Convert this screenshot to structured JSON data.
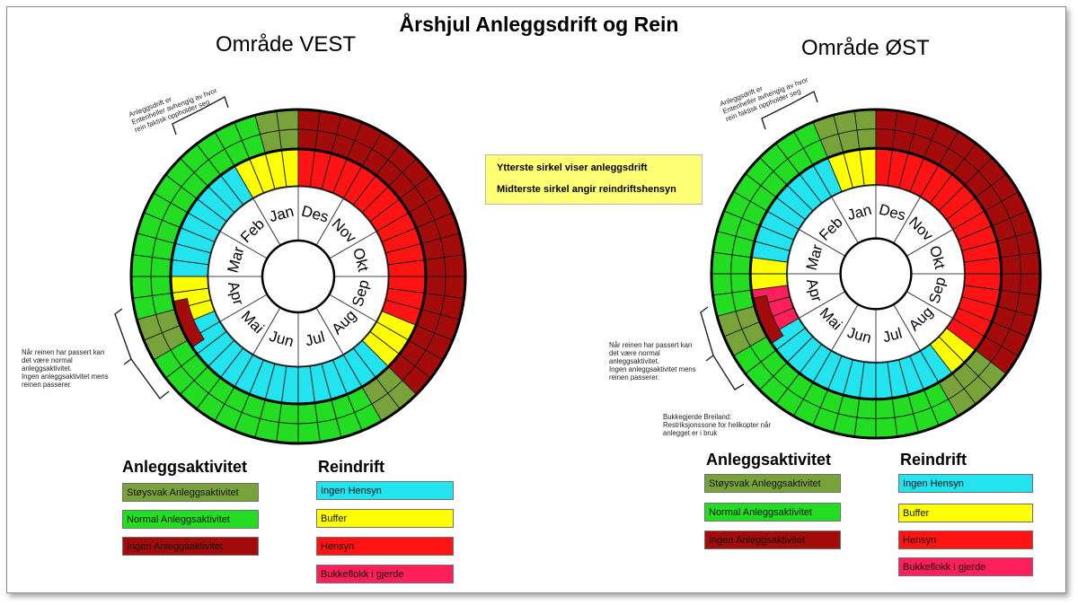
{
  "title": "Årshjul Anleggsdrift og Rein",
  "note": {
    "line1": "Ytterste sirkel viser anleggsdrift",
    "line2": "Midterste sirkel angir reindriftshensyn"
  },
  "colors": {
    "stoysvak": "#77a33a",
    "normal": "#22dd22",
    "ingen": "#a40b0b",
    "ingen_hensyn": "#22e3ee",
    "buffer": "#ffff00",
    "hensyn": "#ff1313",
    "bukkeflokk": "#ff1f5a",
    "note_bg": "#ffff73"
  },
  "months": [
    "Jan",
    "Feb",
    "Mar",
    "Apr",
    "Mai",
    "Jun",
    "Jul",
    "Aug",
    "Sep",
    "Okt",
    "Nov",
    "Des"
  ],
  "vest": {
    "heading": "Område VEST",
    "annotation_top": "Anleggsdrift er\nEntenheller avhengig av hvor\nrein faktisk oppholder seg",
    "annotation_left": "Når reinen har passert kan\ndet være normal\nanleggsaktivitet.\nIngen anleggsaktivitet mens\nreinen passerer.",
    "outer_ring": [
      "S",
      "S",
      "N",
      "N",
      "N",
      "N",
      "N",
      "N",
      "N",
      "N",
      "N",
      "N",
      "N",
      "N",
      "S",
      "S",
      "N",
      "N",
      "N",
      "N",
      "N",
      "N",
      "N",
      "N",
      "N",
      "N",
      "N",
      "N",
      "S",
      "S",
      "I",
      "I",
      "I",
      "I",
      "I",
      "I",
      "I",
      "I",
      "I",
      "I",
      "I",
      "I",
      "I",
      "I",
      "I",
      "I",
      "I",
      "I"
    ],
    "middle_ring": [
      "B",
      "B",
      "B",
      "B",
      "IH",
      "IH",
      "IH",
      "IH",
      "IH",
      "IH",
      "IH",
      "IH",
      "B",
      "B",
      "B",
      "IH",
      "IH",
      "IH",
      "IH",
      "IH",
      "IH",
      "IH",
      "IH",
      "IH",
      "IH",
      "IH",
      "IH",
      "IH",
      "IH",
      "IH",
      "B",
      "B",
      "B",
      "H",
      "H",
      "H",
      "H",
      "H",
      "H",
      "H",
      "H",
      "H",
      "H",
      "H",
      "H",
      "H",
      "H",
      "H"
    ],
    "middle_overlay": [
      {
        "s": 13.5,
        "e": 16.5,
        "c": "I"
      }
    ],
    "legend": {
      "anlegg_heading": "Anleggsaktivitet",
      "anlegg": [
        "Støysvak Anleggsaktivitet",
        "Normal Anleggsaktivitet",
        "Ingen Anleggsaktivitet"
      ],
      "rein_heading": "Reindrift",
      "rein": [
        "Ingen Hensyn",
        "Buffer",
        "Hensyn",
        "Bukkeflokk i gjerde"
      ]
    }
  },
  "ost": {
    "heading": "Område ØST",
    "annotation_top": "Anleggsdrift er\nEntenheller avhengig av hvor\nrein faktisk oppholder seg",
    "annotation_left": "Når reinen har passert kan\ndet være normal\nanleggsaktivitet.\nIngen anleggsaktivitet mens\nreinen passerer.",
    "annotation_bottom": "Bukkegjerde Breiland:\nRestriksjonssone for helikopter når\nanlegget er i bruk",
    "outer_ring": [
      "S",
      "S",
      "S",
      "N",
      "N",
      "N",
      "N",
      "N",
      "N",
      "N",
      "N",
      "N",
      "N",
      "N",
      "S",
      "S",
      "N",
      "N",
      "N",
      "N",
      "N",
      "N",
      "N",
      "N",
      "N",
      "N",
      "N",
      "N",
      "S",
      "S",
      "S",
      "I",
      "I",
      "I",
      "I",
      "I",
      "I",
      "I",
      "I",
      "I",
      "I",
      "I",
      "I",
      "I",
      "I",
      "I",
      "I",
      "I"
    ],
    "middle_ring": [
      "B",
      "B",
      "B",
      "IH",
      "IH",
      "IH",
      "IH",
      "IH",
      "IH",
      "IH",
      "IH",
      "B",
      "B",
      "BK",
      "BK",
      "BK",
      "IH",
      "IH",
      "IH",
      "IH",
      "IH",
      "IH",
      "IH",
      "IH",
      "IH",
      "IH",
      "IH",
      "IH",
      "IH",
      "B",
      "B",
      "H",
      "H",
      "H",
      "H",
      "H",
      "H",
      "H",
      "H",
      "H",
      "H",
      "H",
      "H",
      "H",
      "H",
      "H",
      "H",
      "H"
    ],
    "middle_overlay": [
      {
        "s": 13.5,
        "e": 16.5,
        "c": "I"
      }
    ],
    "legend": {
      "anlegg_heading": "Anleggsaktivitet",
      "anlegg": [
        "Støysvak Anleggsaktivitet",
        "Normal Anleggsaktivitet",
        "Ingen Anleggsaktivitet"
      ],
      "rein_heading": "Reindrift",
      "rein": [
        "Ingen Hensyn",
        "Buffer",
        "Hensyn",
        "Bukkeflokk i gjerde"
      ]
    }
  }
}
